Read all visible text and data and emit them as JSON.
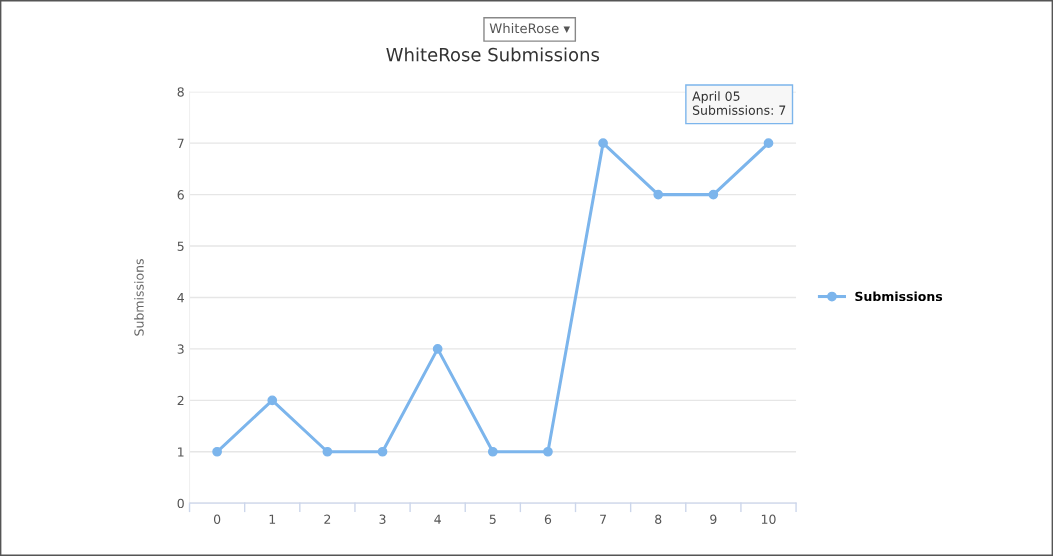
{
  "chart_data": {
    "type": "line",
    "title": "WhiteRose Submissions",
    "ylabel": "Submissions",
    "categories": [
      "0",
      "1",
      "2",
      "3",
      "4",
      "5",
      "6",
      "7",
      "8",
      "9",
      "10"
    ],
    "series": [
      {
        "name": "Submissions",
        "color": "#7cb5ec",
        "values": [
          1,
          2,
          1,
          1,
          3,
          1,
          1,
          7,
          6,
          6,
          7
        ]
      }
    ],
    "ylim": [
      0,
      8
    ],
    "yticks": [
      0,
      1,
      2,
      3,
      4,
      5,
      6,
      7,
      8
    ],
    "grid": "y",
    "legend": "right",
    "marker": "circle",
    "line_style": "solid",
    "annotations": [
      "WhiteRose ▾",
      {
        "text": "April 05\nSubmissions: 7",
        "x": "10",
        "y": 7
      }
    ]
  }
}
